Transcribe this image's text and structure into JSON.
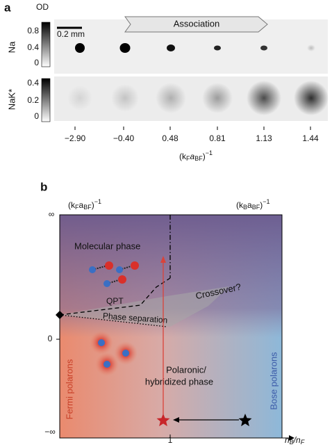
{
  "panel_a": {
    "label": "a",
    "colorbar_title": "OD",
    "scale_bar": "0.2 mm",
    "arrow_text": "Association",
    "rows": [
      {
        "name": "Na",
        "ticks": [
          "0.8",
          "0.4",
          "0"
        ]
      },
      {
        "name": "NaK*",
        "ticks": [
          "0.4",
          "0.2",
          "0"
        ]
      }
    ],
    "x_tick_labels": [
      "−2.90",
      "−0.40",
      "0.48",
      "0.81",
      "1.13",
      "1.44"
    ],
    "x_label": [
      "(k",
      "F",
      "a",
      "BF",
      ")",
      "−1"
    ]
  },
  "panel_b": {
    "label": "b",
    "top_left_label": [
      "(k",
      "F",
      "a",
      "BF",
      ")",
      "−1"
    ],
    "top_right_label": [
      "(k",
      "B",
      "a",
      "BF",
      ")",
      "−1"
    ],
    "y_tick_labels": [
      "∞",
      "0",
      "−∞"
    ],
    "x_tick_label": "1",
    "x_label": [
      "n",
      "B",
      "/n",
      "F"
    ],
    "regions": {
      "molecular": "Molecular phase",
      "qpt": "QPT",
      "crossover": "Crossover?",
      "separation": "Phase separation",
      "fermi": "Fermi polarons",
      "bose": "Bose polarons",
      "polaronic": [
        "Polaronic/",
        "hybridized phase"
      ]
    }
  }
}
